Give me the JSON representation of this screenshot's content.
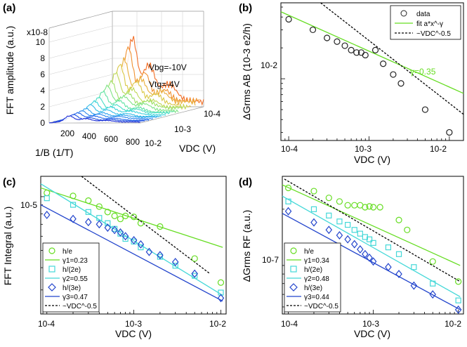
{
  "figure": {
    "colors": {
      "green": "#66dd22",
      "cyan": "#44d8d8",
      "blue": "#2244cc",
      "black": "#000000"
    }
  },
  "chart_data": [
    {
      "panel": "(a)",
      "type": "surface3d",
      "title": "",
      "zlabel": "FFT amplitude (a.u.)",
      "zscale": "x10-8",
      "zticks": [
        "0",
        "2",
        "4",
        "6",
        "8",
        "10"
      ],
      "xlabel": "1/B (1/T)",
      "xticks": [
        "200",
        "400",
        "600",
        "800"
      ],
      "ylabel": "VDC (V)",
      "yticks": [
        "10-2",
        "10-3",
        "10-4"
      ],
      "annotations": [
        "Vbg=-10V",
        "Vtg=-4V"
      ],
      "curves": 16
    },
    {
      "panel": "(b)",
      "type": "scatter",
      "xscale": "log",
      "yscale": "log",
      "xlim": [
        8e-05,
        0.015
      ],
      "ylim": [
        0.0025,
        0.055
      ],
      "xlabel": "VDC (V)",
      "ylabel": "ΔGrms AB (10-3 e2/h)",
      "xticks": [
        "10-4",
        "10-3",
        "10-2"
      ],
      "yticks": [
        "10-2"
      ],
      "series": [
        {
          "name": "data",
          "kind": "points",
          "marker": "circle",
          "color": "#222222",
          "x": [
            0.0001,
            0.0002,
            0.0003,
            0.0004,
            0.0005,
            0.0006,
            0.0007,
            0.0008,
            0.0009,
            0.0012,
            0.0015,
            0.002,
            0.0025,
            0.005,
            0.01
          ],
          "y": [
            0.038,
            0.03,
            0.025,
            0.023,
            0.021,
            0.019,
            0.018,
            0.018,
            0.017,
            0.019,
            0.014,
            0.011,
            0.009,
            0.005,
            0.003
          ]
        },
        {
          "name": "fit a*x^-γ",
          "kind": "line",
          "color": "#66dd22",
          "x": [
            8e-05,
            0.015
          ],
          "y": [
            0.045,
            0.0072
          ]
        },
        {
          "name": "~VDC^-0.5",
          "kind": "dashed",
          "color": "#000000",
          "x": [
            0.00025,
            0.015
          ],
          "y": [
            0.055,
            0.0045
          ]
        }
      ],
      "annotations": [
        "γ=0.35"
      ]
    },
    {
      "panel": "(c)",
      "type": "scatter",
      "xscale": "log",
      "yscale": "log",
      "xlim": [
        8.5e-05,
        0.0115
      ],
      "ylim": [
        2.2e-06,
        1.3e-05
      ],
      "xlabel": "VDC (V)",
      "ylabel": "FFT Integral (a.u.)",
      "xticks": [
        "10-4",
        "10-3",
        "10-2"
      ],
      "yticks": [
        "10-5"
      ],
      "series": [
        {
          "name": "h/e",
          "kind": "points",
          "marker": "circle",
          "color": "#66dd22",
          "x": [
            0.0001,
            0.0002,
            0.0003,
            0.0004,
            0.0005,
            0.0006,
            0.0007,
            0.0008,
            0.001,
            0.0012,
            0.002,
            0.005,
            0.01
          ],
          "y": [
            1.05e-05,
            1.01e-05,
            9.5e-06,
            8.8e-06,
            8.2e-06,
            7.8e-06,
            7.5e-06,
            7.8e-06,
            7.7e-06,
            7.1e-06,
            6.8e-06,
            4.5e-06,
            3.3e-06
          ]
        },
        {
          "name": "γ1=0.23",
          "kind": "line",
          "color": "#66dd22",
          "x": [
            8.5e-05,
            0.0105
          ],
          "y": [
            1.12e-05,
            5.2e-06
          ]
        },
        {
          "name": "h/(2e)",
          "kind": "points",
          "marker": "square",
          "color": "#44d8d8",
          "x": [
            0.0001,
            0.0002,
            0.0003,
            0.0004,
            0.0005,
            0.0006,
            0.0007,
            0.0008,
            0.001,
            0.0012,
            0.002,
            0.003,
            0.005,
            0.01
          ],
          "y": [
            9.8e-06,
            9e-06,
            8.2e-06,
            7.6e-06,
            7.1e-06,
            6.6e-06,
            6.2e-06,
            5.8e-06,
            5.6e-06,
            5.2e-06,
            4.6e-06,
            4.1e-06,
            3.6e-06,
            2.9e-06
          ]
        },
        {
          "name": "γ2=0.55",
          "kind": "line",
          "color": "#44d8d8",
          "x": [
            8.5e-05,
            0.0105
          ],
          "y": [
            1.18e-05,
            2.8e-06
          ]
        },
        {
          "name": "h/(3e)",
          "kind": "points",
          "marker": "diamond",
          "color": "#2244cc",
          "x": [
            0.0001,
            0.0002,
            0.0003,
            0.0004,
            0.0005,
            0.0006,
            0.0007,
            0.0008,
            0.001,
            0.0012,
            0.0015,
            0.002,
            0.003,
            0.005,
            0.01
          ],
          "y": [
            7.9e-06,
            7.5e-06,
            7.2e-06,
            7e-06,
            6.7e-06,
            6.5e-06,
            6.3e-06,
            6e-06,
            5.7e-06,
            5.4e-06,
            4.9e-06,
            4.7e-06,
            4.3e-06,
            3.7e-06,
            2.7e-06
          ]
        },
        {
          "name": "γ3=0.47",
          "kind": "line",
          "color": "#2244cc",
          "x": [
            8.5e-05,
            0.0105
          ],
          "y": [
            9e-06,
            2.6e-06
          ]
        },
        {
          "name": "~VDC^-0.5",
          "kind": "dashed",
          "color": "#000000",
          "x": [
            0.00025,
            0.0075
          ],
          "y": [
            1.3e-05,
            3.7e-06
          ]
        }
      ]
    },
    {
      "panel": "(d)",
      "type": "scatter",
      "xscale": "log",
      "yscale": "log",
      "xlim": [
        8.5e-05,
        0.0115
      ],
      "ylim": [
        5.5e-08,
        3e-07
      ],
      "xlabel": "VDC (V)",
      "ylabel": "ΔGrms RF (a.u.)",
      "xticks": [
        "10-4",
        "10-3",
        "10-2"
      ],
      "yticks": [
        "10-7"
      ],
      "series": [
        {
          "name": "h/e",
          "kind": "points",
          "marker": "circle",
          "color": "#66dd22",
          "x": [
            0.0001,
            0.0002,
            0.0003,
            0.0004,
            0.0005,
            0.0006,
            0.0007,
            0.0008,
            0.0009,
            0.001,
            0.0012,
            0.002,
            0.0025,
            0.005,
            0.01
          ],
          "y": [
            2.6e-07,
            2.5e-07,
            2.3e-07,
            2.2e-07,
            2.1e-07,
            2.1e-07,
            2.1e-07,
            2.05e-07,
            2.07e-07,
            2.05e-07,
            2.05e-07,
            1.75e-07,
            1.55e-07,
            1.05e-07,
            8.2e-08
          ]
        },
        {
          "name": "γ1=0.34",
          "kind": "line",
          "color": "#66dd22",
          "x": [
            8.5e-05,
            0.0105
          ],
          "y": [
            2.7e-07,
            1e-07
          ]
        },
        {
          "name": "h/(2e)",
          "kind": "points",
          "marker": "square",
          "color": "#44d8d8",
          "x": [
            0.0001,
            0.0002,
            0.0003,
            0.0004,
            0.0005,
            0.0006,
            0.0007,
            0.0008,
            0.0009,
            0.001,
            0.0015,
            0.002,
            0.003,
            0.005,
            0.01
          ],
          "y": [
            2.2e-07,
            2e-07,
            1.85e-07,
            1.72e-07,
            1.65e-07,
            1.55e-07,
            1.48e-07,
            1.42e-07,
            1.38e-07,
            1.32e-07,
            1.25e-07,
            1.15e-07,
            9.8e-08,
            8e-08,
            6.5e-08
          ]
        },
        {
          "name": "γ2=0.48",
          "kind": "line",
          "color": "#44d8d8",
          "x": [
            8.5e-05,
            0.0105
          ],
          "y": [
            2.35e-07,
            6.8e-08
          ]
        },
        {
          "name": "h/(3e)",
          "kind": "points",
          "marker": "diamond",
          "color": "#2244cc",
          "x": [
            0.0001,
            0.0002,
            0.0003,
            0.0004,
            0.0005,
            0.0006,
            0.0007,
            0.0008,
            0.0009,
            0.001,
            0.0015,
            0.002,
            0.003,
            0.005,
            0.01
          ],
          "y": [
            1.95e-07,
            1.7e-07,
            1.55e-07,
            1.45e-07,
            1.38e-07,
            1.3e-07,
            1.22e-07,
            1.15e-07,
            1.1e-07,
            1.05e-07,
            9.8e-08,
            9e-08,
            7.8e-08,
            7e-08,
            5.8e-08
          ]
        },
        {
          "name": "γ3=0.44",
          "kind": "line",
          "color": "#2244cc",
          "x": [
            8.5e-05,
            0.0105
          ],
          "y": [
            1.9e-07,
            5.8e-08
          ]
        },
        {
          "name": "~VDC^-0.5",
          "kind": "dashed",
          "color": "#000000",
          "x": [
            9e-05,
            0.0105
          ],
          "y": [
            2.9e-07,
            8.2e-08
          ]
        }
      ]
    }
  ]
}
